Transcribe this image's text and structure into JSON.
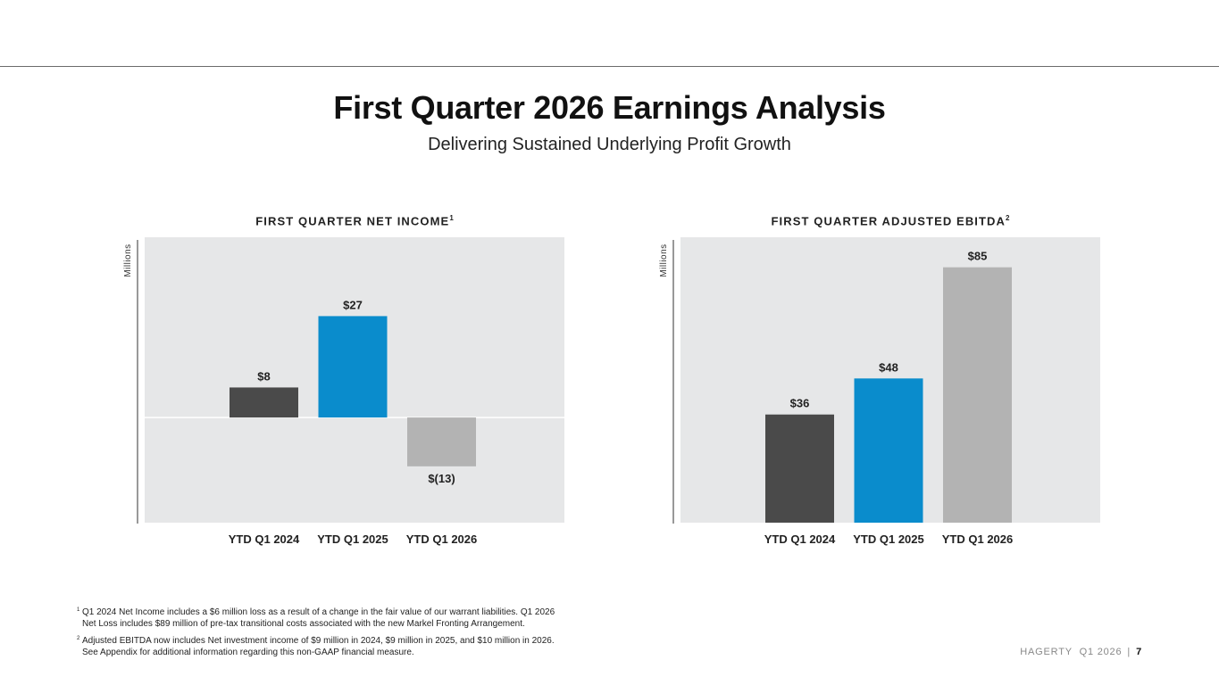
{
  "slide": {
    "title": "First Quarter 2026 Earnings Analysis",
    "subtitle": "Delivering Sustained Underlying Profit Growth"
  },
  "chart_data": [
    {
      "type": "bar",
      "title": "FIRST QUARTER NET INCOME",
      "title_footnote": "1",
      "ylabel": "Millions",
      "categories": [
        "YTD Q1 2024",
        "YTD Q1 2025",
        "YTD Q1 2026"
      ],
      "values": [
        8,
        27,
        -13
      ],
      "value_labels": [
        "$8",
        "$27",
        "$(13)"
      ],
      "colors": [
        "#4a4a4a",
        "#0a8ccc",
        "#b3b3b3"
      ],
      "ylim": [
        -28,
        48
      ],
      "grid": false,
      "legend": "none"
    },
    {
      "type": "bar",
      "title": "FIRST QUARTER ADJUSTED EBITDA",
      "title_footnote": "2",
      "ylabel": "Millions",
      "categories": [
        "YTD Q1 2024",
        "YTD Q1 2025",
        "YTD Q1 2026"
      ],
      "values": [
        36,
        48,
        85
      ],
      "value_labels": [
        "$36",
        "$48",
        "$85"
      ],
      "colors": [
        "#4a4a4a",
        "#0a8ccc",
        "#b3b3b3"
      ],
      "ylim": [
        0,
        95
      ],
      "grid": false,
      "legend": "none"
    }
  ],
  "footnotes": [
    {
      "marker": "1",
      "lines": [
        "Q1 2024 Net Income includes a $6 million loss as a result of a change in the fair value of our warrant liabilities. Q1 2026",
        "Net Loss includes $89 million of pre-tax transitional costs associated with the new Markel Fronting Arrangement."
      ]
    },
    {
      "marker": "2",
      "lines": [
        "Adjusted EBITDA now includes Net investment income of $9 million in 2024, $9 million in 2025, and $10 million in 2026.",
        "See Appendix for additional information regarding this non-GAAP financial measure."
      ]
    }
  ],
  "footer": {
    "brand": "HAGERTY",
    "period": "Q1 2026",
    "separator": "|",
    "page_number": "7"
  }
}
